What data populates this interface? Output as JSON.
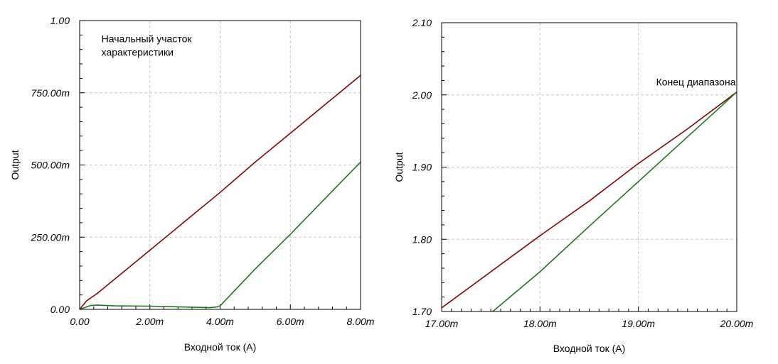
{
  "chart_data": [
    {
      "type": "line",
      "xlabel": "Входной ток (A)",
      "ylabel": "Output",
      "xlim": [
        0,
        0.008
      ],
      "ylim": [
        0,
        1.0
      ],
      "x_ticks": [
        0,
        0.002,
        0.004,
        0.006,
        0.008
      ],
      "x_tick_labels": [
        "0.00",
        "2.00m",
        "4.00m",
        "6.00m",
        "8.00m"
      ],
      "y_ticks": [
        0,
        0.25,
        0.5,
        0.75,
        1.0
      ],
      "y_tick_labels": [
        "0.00",
        "250.00m",
        "500.00m",
        "750.00m",
        "1.00"
      ],
      "grid": true,
      "annotations": [
        {
          "text_lines": [
            "Начальный участок",
            "характеристики"
          ],
          "x": 0.00062,
          "y": 0.925
        }
      ],
      "series": [
        {
          "color": "#8b0000",
          "x": [
            0,
            0.0002,
            0.0005,
            0.001,
            0.002,
            0.003,
            0.004,
            0.005,
            0.006,
            0.007,
            0.008
          ],
          "y": [
            0,
            0.03,
            0.055,
            0.105,
            0.205,
            0.305,
            0.405,
            0.51,
            0.61,
            0.71,
            0.81
          ]
        },
        {
          "color": "#1a7a1a",
          "x": [
            0,
            0.0003,
            0.0005,
            0.001,
            0.002,
            0.003,
            0.0037,
            0.0039,
            0.004,
            0.005,
            0.006,
            0.007,
            0.008
          ],
          "y": [
            0,
            0.013,
            0.015,
            0.012,
            0.011,
            0.008,
            0.006,
            0.008,
            0.012,
            0.14,
            0.26,
            0.385,
            0.51
          ]
        }
      ]
    },
    {
      "type": "line",
      "xlabel": "Входной ток (A)",
      "ylabel": "Output",
      "xlim": [
        0.017,
        0.02
      ],
      "ylim": [
        1.7,
        2.1
      ],
      "x_ticks": [
        0.017,
        0.018,
        0.019,
        0.02
      ],
      "x_tick_labels": [
        "17.00m",
        "18.00m",
        "19.00m",
        "20.00m"
      ],
      "y_ticks": [
        1.7,
        1.8,
        1.9,
        2.0,
        2.1
      ],
      "y_tick_labels": [
        "1.70",
        "1.80",
        "1.90",
        "2.00",
        "2.10"
      ],
      "grid": true,
      "annotations": [
        {
          "text_lines": [
            "Конец диапазона"
          ],
          "x": 0.01918,
          "y": 2.013
        }
      ],
      "series": [
        {
          "color": "#8b0000",
          "x": [
            0.017,
            0.0175,
            0.018,
            0.0185,
            0.019,
            0.0195,
            0.02
          ],
          "y": [
            1.705,
            1.755,
            1.805,
            1.853,
            1.905,
            1.953,
            2.004
          ]
        },
        {
          "color": "#1a7a1a",
          "x": [
            0.01752,
            0.018,
            0.0185,
            0.019,
            0.0195,
            0.02
          ],
          "y": [
            1.7,
            1.755,
            1.818,
            1.88,
            1.942,
            2.004
          ]
        }
      ]
    }
  ]
}
